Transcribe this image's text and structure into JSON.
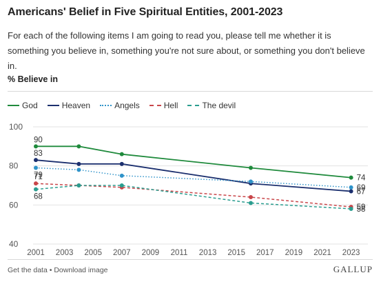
{
  "header": {
    "title": "Americans' Belief in Five Spiritual Entities, 2001-2023",
    "subtitle": "For each of the following items I am going to read you, please tell me whether it is something you believe in, something you're not sure about, or something you don't believe in.",
    "ylabel": "% Believe in"
  },
  "footer": {
    "get_data": "Get the data",
    "separator": " • ",
    "download": "Download image",
    "brand": "GALLUP"
  },
  "chart_data": {
    "type": "line",
    "x_ticks": [
      "2001",
      "2003",
      "2005",
      "2007",
      "2009",
      "2011",
      "2013",
      "2015",
      "2017",
      "2019",
      "2021",
      "2023"
    ],
    "xlim": [
      2001,
      2023.5
    ],
    "ylim": [
      40,
      100
    ],
    "y_ticks": [
      40,
      60,
      80,
      100
    ],
    "grid": "horizontal",
    "legend_position": "top",
    "series": [
      {
        "name": "God",
        "color": "#1f8a3c",
        "dash": "solid",
        "points": [
          [
            2001,
            90
          ],
          [
            2004,
            90
          ],
          [
            2007,
            86
          ],
          [
            2016,
            79
          ],
          [
            2023,
            74
          ]
        ],
        "labels": [
          {
            "x": 2001,
            "text": "90",
            "pos": "above"
          },
          {
            "x": 2023,
            "text": "74",
            "pos": "right"
          }
        ]
      },
      {
        "name": "Heaven",
        "color": "#1b2f6e",
        "dash": "solid",
        "points": [
          [
            2001,
            83
          ],
          [
            2004,
            81
          ],
          [
            2007,
            81
          ],
          [
            2016,
            71
          ],
          [
            2023,
            67
          ]
        ],
        "labels": [
          {
            "x": 2001,
            "text": "83",
            "pos": "above"
          },
          {
            "x": 2023,
            "text": "67",
            "pos": "right"
          }
        ]
      },
      {
        "name": "Angels",
        "color": "#2f93c9",
        "dash": "dotted",
        "points": [
          [
            2001,
            79
          ],
          [
            2004,
            78
          ],
          [
            2007,
            75
          ],
          [
            2016,
            72
          ],
          [
            2023,
            69
          ]
        ],
        "labels": [
          {
            "x": 2001,
            "text": "79",
            "pos": "below"
          },
          {
            "x": 2023,
            "text": "69",
            "pos": "right"
          }
        ]
      },
      {
        "name": "Hell",
        "color": "#c9464a",
        "dash": "dashed",
        "points": [
          [
            2001,
            71
          ],
          [
            2004,
            70
          ],
          [
            2007,
            69
          ],
          [
            2016,
            64
          ],
          [
            2023,
            59
          ]
        ],
        "labels": [
          {
            "x": 2001,
            "text": "71",
            "pos": "above"
          },
          {
            "x": 2023,
            "text": "59",
            "pos": "right"
          }
        ]
      },
      {
        "name": "The devil",
        "color": "#2a9d8f",
        "dash": "dashed",
        "points": [
          [
            2001,
            68
          ],
          [
            2004,
            70
          ],
          [
            2007,
            70
          ],
          [
            2016,
            61
          ],
          [
            2023,
            58
          ]
        ],
        "labels": [
          {
            "x": 2001,
            "text": "68",
            "pos": "below"
          },
          {
            "x": 2023,
            "text": "58",
            "pos": "right"
          }
        ]
      }
    ]
  }
}
